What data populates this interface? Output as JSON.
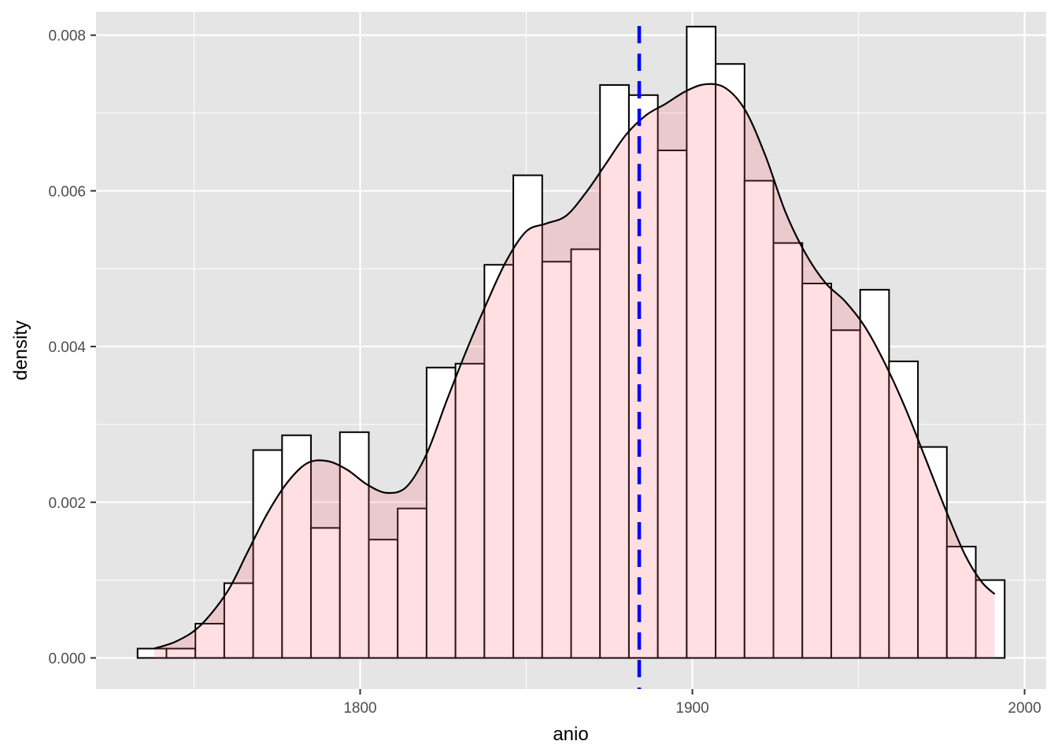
{
  "chart_data": {
    "type": "histogram",
    "xlabel": "anio",
    "ylabel": "density",
    "xlim": [
      1720.5,
      2006.5
    ],
    "ylim": [
      -0.0004,
      0.0083
    ],
    "x_ticks": [
      1800,
      1900,
      2000
    ],
    "y_ticks": [
      0.0,
      0.002,
      0.004,
      0.006,
      0.008
    ],
    "x_tick_labels": [
      "1800",
      "1900",
      "2000"
    ],
    "y_tick_labels": [
      "0.000",
      "0.002",
      "0.004",
      "0.006",
      "0.008"
    ],
    "grid": true,
    "background": "#e5e5e5",
    "bins": {
      "start": 1733,
      "width": 8.7,
      "densities": [
        0.00012,
        0.00012,
        0.00044,
        0.00096,
        0.00267,
        0.00286,
        0.00167,
        0.0029,
        0.00152,
        0.00192,
        0.00373,
        0.00378,
        0.00505,
        0.0062,
        0.00509,
        0.00525,
        0.00736,
        0.00723,
        0.00652,
        0.00811,
        0.00763,
        0.00613,
        0.00533,
        0.00481,
        0.00421,
        0.00473,
        0.00381,
        0.00271,
        0.00143,
        0.001
      ],
      "fill": "#ffffff",
      "outline": "#000000"
    },
    "density_curve": {
      "x": [
        1738,
        1745,
        1752,
        1760,
        1766,
        1772,
        1778,
        1784,
        1790,
        1796,
        1802,
        1808,
        1814,
        1820,
        1826,
        1832,
        1838,
        1844,
        1850,
        1856,
        1862,
        1868,
        1874,
        1880,
        1886,
        1892,
        1898,
        1904,
        1910,
        1916,
        1922,
        1928,
        1934,
        1940,
        1946,
        1952,
        1958,
        1964,
        1970,
        1976,
        1982,
        1987,
        1991
      ],
      "y": [
        0.00012,
        0.00022,
        0.00042,
        0.00085,
        0.00135,
        0.00185,
        0.00225,
        0.0025,
        0.00253,
        0.00242,
        0.00223,
        0.00212,
        0.0022,
        0.00262,
        0.0033,
        0.00395,
        0.00455,
        0.0051,
        0.00548,
        0.00558,
        0.00568,
        0.00598,
        0.00635,
        0.00672,
        0.00697,
        0.00712,
        0.00728,
        0.00737,
        0.00732,
        0.00703,
        0.00645,
        0.00573,
        0.0052,
        0.00482,
        0.00458,
        0.00425,
        0.00378,
        0.00322,
        0.00258,
        0.00193,
        0.00133,
        0.00098,
        0.00082
      ],
      "fill": "#ff6070",
      "fill_opacity": 0.2,
      "line_color": "#000000"
    },
    "reference_line": {
      "x": 1884,
      "color": "#0000ff",
      "linetype": "dashed"
    }
  }
}
